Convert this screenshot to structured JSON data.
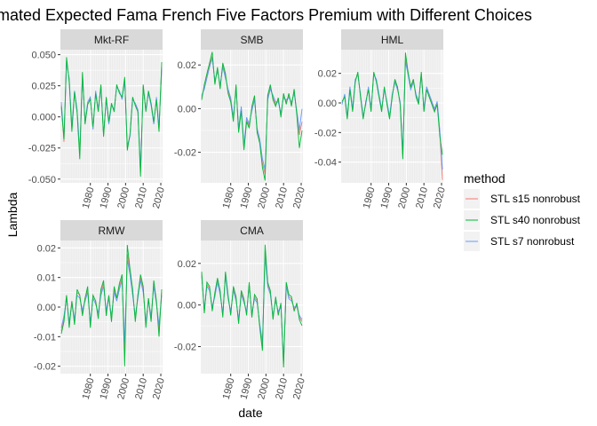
{
  "title": "mated Expected Fama French Five Factors Premium with Different Choices",
  "xlabel": "date",
  "ylabel": "Lambda",
  "legend": {
    "title": "method",
    "position": "right",
    "entries": [
      {
        "name": "STL s15 nonrobust",
        "color": "#F8766D"
      },
      {
        "name": "STL s40 nonrobust",
        "color": "#00BA38"
      },
      {
        "name": "STL s7 nonrobust",
        "color": "#619CFF"
      }
    ]
  },
  "colors": {
    "panel_bg": "#EBEBEB",
    "strip_bg": "#D9D9D9",
    "grid": "#FFFFFF",
    "text": "#4D4D4D"
  },
  "chart_data": [
    {
      "type": "line",
      "panel": "Mkt-RF",
      "xlim": [
        1963,
        2021
      ],
      "ylim": [
        -0.053,
        0.054
      ],
      "xticks": [
        1980,
        1990,
        2000,
        2010,
        2020
      ],
      "yticks": [
        0.05,
        0.025,
        0.0,
        -0.025,
        -0.05
      ],
      "ytick_labels": [
        "0.050",
        "0.025",
        "0.000",
        "-0.025",
        "-0.050"
      ],
      "x": [
        1963.5,
        1965,
        1966.5,
        1968,
        1969.5,
        1971,
        1972.5,
        1974,
        1975.5,
        1977,
        1978.5,
        1980,
        1981.5,
        1983,
        1984.5,
        1986,
        1987.5,
        1989,
        1990.5,
        1992,
        1993.5,
        1995,
        1996.5,
        1998,
        1999.5,
        2001,
        2002.5,
        2004,
        2005.5,
        2007,
        2008.5,
        2010,
        2011.5,
        2013,
        2014.5,
        2016,
        2017.5,
        2019,
        2020.5
      ],
      "series": [
        {
          "name": "STL s15 nonrobust",
          "values": [
            0.01,
            -0.02,
            0.045,
            0.03,
            -0.01,
            0.02,
            0.005,
            -0.03,
            0.035,
            -0.005,
            0.01,
            0.015,
            -0.01,
            0.02,
            0.005,
            0.025,
            -0.015,
            0.015,
            -0.005,
            0.01,
            0.005,
            0.025,
            0.02,
            0.015,
            0.03,
            -0.025,
            -0.015,
            0.015,
            0.01,
            0.005,
            -0.045,
            0.025,
            0.005,
            0.02,
            0.01,
            -0.005,
            0.015,
            -0.01,
            0.04
          ]
        },
        {
          "name": "STL s40 nonrobust",
          "values": [
            0.008,
            -0.018,
            0.048,
            0.028,
            -0.012,
            0.02,
            0.003,
            -0.034,
            0.036,
            -0.006,
            0.01,
            0.014,
            -0.008,
            0.019,
            0.004,
            0.026,
            -0.016,
            0.016,
            -0.004,
            0.011,
            0.004,
            0.026,
            0.019,
            0.016,
            0.032,
            -0.027,
            -0.014,
            0.016,
            0.009,
            0.004,
            -0.048,
            0.026,
            0.004,
            0.021,
            0.011,
            -0.004,
            0.014,
            -0.012,
            0.044
          ]
        },
        {
          "name": "STL s7 nonrobust",
          "values": [
            0.012,
            -0.016,
            0.043,
            0.031,
            -0.008,
            0.021,
            0.006,
            -0.028,
            0.033,
            -0.004,
            0.012,
            0.016,
            -0.01,
            0.021,
            0.006,
            0.024,
            -0.014,
            0.014,
            -0.006,
            0.009,
            0.006,
            0.024,
            0.021,
            0.014,
            0.029,
            -0.023,
            -0.016,
            0.014,
            0.011,
            0.006,
            -0.042,
            0.024,
            0.006,
            0.019,
            0.009,
            -0.006,
            0.016,
            -0.008,
            0.038
          ]
        }
      ]
    },
    {
      "type": "line",
      "panel": "SMB",
      "xlim": [
        1963,
        2021
      ],
      "ylim": [
        -0.034,
        0.027
      ],
      "xticks": [
        1980,
        1990,
        2000,
        2010,
        2020
      ],
      "yticks": [
        0.02,
        0.0,
        -0.02
      ],
      "ytick_labels": [
        "0.02",
        "0.00",
        "-0.02"
      ],
      "x": [
        1963.5,
        1965,
        1966.5,
        1968,
        1969.5,
        1971,
        1972.5,
        1974,
        1975.5,
        1977,
        1978.5,
        1980,
        1981.5,
        1983,
        1984.5,
        1986,
        1987.5,
        1989,
        1990.5,
        1992,
        1993.5,
        1995,
        1996.5,
        1998,
        1999.5,
        2001,
        2002.5,
        2004,
        2005.5,
        2007,
        2008.5,
        2010,
        2011.5,
        2013,
        2014.5,
        2016,
        2017.5,
        2019,
        2020.5
      ],
      "series": [
        {
          "name": "STL s15 nonrobust",
          "values": [
            0.005,
            0.01,
            0.015,
            0.02,
            0.024,
            0.012,
            0.018,
            0.01,
            0.02,
            0.015,
            0.008,
            0.004,
            -0.005,
            0.01,
            -0.01,
            0.0,
            -0.018,
            -0.005,
            -0.008,
            0.0,
            0.005,
            -0.01,
            -0.015,
            -0.025,
            -0.03,
            0.005,
            0.01,
            0.005,
            0.002,
            0.004,
            -0.003,
            0.006,
            0.003,
            0.006,
            0.002,
            0.008,
            -0.002,
            -0.012,
            -0.006
          ]
        },
        {
          "name": "STL s40 nonrobust",
          "values": [
            0.004,
            0.011,
            0.016,
            0.021,
            0.026,
            0.011,
            0.019,
            0.009,
            0.021,
            0.016,
            0.007,
            0.003,
            -0.006,
            0.011,
            -0.011,
            -0.001,
            -0.019,
            -0.006,
            -0.009,
            0.001,
            0.006,
            -0.011,
            -0.016,
            -0.027,
            -0.033,
            0.006,
            0.011,
            0.004,
            0.001,
            0.005,
            -0.004,
            0.007,
            0.002,
            0.007,
            0.001,
            0.009,
            -0.003,
            -0.018,
            -0.01
          ]
        },
        {
          "name": "STL s7 nonrobust",
          "values": [
            0.006,
            0.009,
            0.014,
            0.019,
            0.023,
            0.013,
            0.017,
            0.011,
            0.019,
            0.014,
            0.009,
            0.005,
            -0.004,
            0.009,
            -0.009,
            0.001,
            -0.017,
            -0.004,
            -0.007,
            -0.001,
            0.004,
            -0.009,
            -0.014,
            -0.023,
            -0.028,
            0.004,
            0.009,
            0.006,
            0.003,
            0.003,
            -0.002,
            0.005,
            0.004,
            0.005,
            0.003,
            0.007,
            -0.001,
            -0.01,
            0.0
          ]
        }
      ]
    },
    {
      "type": "line",
      "panel": "HML",
      "xlim": [
        1963,
        2021
      ],
      "ylim": [
        -0.054,
        0.036
      ],
      "xticks": [
        1980,
        1990,
        2000,
        2010,
        2020
      ],
      "yticks": [
        0.02,
        0.0,
        -0.02,
        -0.04
      ],
      "ytick_labels": [
        "0.02",
        "0.00",
        "-0.02",
        "-0.04"
      ],
      "x": [
        1963.5,
        1965,
        1966.5,
        1968,
        1969.5,
        1971,
        1972.5,
        1974,
        1975.5,
        1977,
        1978.5,
        1980,
        1981.5,
        1983,
        1984.5,
        1986,
        1987.5,
        1989,
        1990.5,
        1992,
        1993.5,
        1995,
        1996.5,
        1998,
        1999.5,
        2001,
        2002.5,
        2004,
        2005.5,
        2007,
        2008.5,
        2010,
        2011.5,
        2013,
        2014.5,
        2016,
        2017.5,
        2019,
        2020.5
      ],
      "series": [
        {
          "name": "STL s15 nonrobust",
          "values": [
            0.0,
            0.005,
            -0.01,
            0.01,
            -0.005,
            0.015,
            0.02,
            0.005,
            -0.01,
            0.0,
            0.01,
            -0.005,
            0.02,
            0.015,
            0.005,
            -0.005,
            0.01,
            0.0,
            -0.01,
            0.005,
            0.015,
            0.01,
            0.0,
            -0.035,
            0.03,
            0.02,
            0.01,
            0.015,
            0.005,
            0.0,
            0.02,
            -0.005,
            0.01,
            0.005,
            0.0,
            -0.005,
            0.0,
            -0.02,
            -0.052
          ]
        },
        {
          "name": "STL s40 nonrobust",
          "values": [
            0.001,
            0.004,
            -0.011,
            0.009,
            -0.006,
            0.014,
            0.021,
            0.004,
            -0.011,
            0.001,
            0.009,
            -0.006,
            0.021,
            0.014,
            0.004,
            -0.006,
            0.011,
            -0.001,
            -0.011,
            0.004,
            0.016,
            0.011,
            -0.001,
            -0.038,
            0.034,
            0.021,
            0.011,
            0.016,
            0.004,
            -0.001,
            0.021,
            -0.006,
            0.009,
            0.004,
            -0.001,
            -0.006,
            -0.001,
            -0.022,
            -0.035
          ]
        },
        {
          "name": "STL s7 nonrobust",
          "values": [
            -0.001,
            0.006,
            -0.009,
            0.011,
            -0.004,
            0.016,
            0.019,
            0.006,
            -0.009,
            -0.001,
            0.011,
            -0.004,
            0.019,
            0.016,
            0.006,
            -0.004,
            0.009,
            0.001,
            -0.009,
            0.006,
            0.014,
            0.009,
            0.001,
            -0.033,
            0.028,
            0.019,
            0.009,
            0.014,
            0.006,
            0.001,
            0.019,
            -0.004,
            0.011,
            0.006,
            0.001,
            -0.004,
            0.001,
            -0.018,
            -0.045
          ]
        }
      ]
    },
    {
      "type": "line",
      "panel": "RMW",
      "xlim": [
        1963,
        2021
      ],
      "ylim": [
        -0.0225,
        0.0225
      ],
      "xticks": [
        1980,
        1990,
        2000,
        2010,
        2020
      ],
      "yticks": [
        0.02,
        0.01,
        0.0,
        -0.01,
        -0.02
      ],
      "ytick_labels": [
        "0.02",
        "0.01",
        "0.00",
        "-0.01",
        "-0.02"
      ],
      "x": [
        1963.5,
        1965,
        1966.5,
        1968,
        1969.5,
        1971,
        1972.5,
        1974,
        1975.5,
        1977,
        1978.5,
        1980,
        1981.5,
        1983,
        1984.5,
        1986,
        1987.5,
        1989,
        1990.5,
        1992,
        1993.5,
        1995,
        1996.5,
        1998,
        1999.5,
        2001,
        2002.5,
        2004,
        2005.5,
        2007,
        2008.5,
        2010,
        2011.5,
        2013,
        2014.5,
        2016,
        2017.5,
        2019,
        2020.5
      ],
      "series": [
        {
          "name": "STL s15 nonrobust",
          "values": [
            -0.008,
            -0.004,
            0.004,
            -0.006,
            0.002,
            -0.005,
            0.005,
            0.004,
            -0.002,
            0.003,
            0.006,
            -0.006,
            0.004,
            0.002,
            -0.003,
            0.005,
            0.008,
            -0.002,
            0.004,
            -0.004,
            0.006,
            0.003,
            0.007,
            0.01,
            -0.015,
            0.018,
            0.012,
            0.005,
            -0.004,
            0.004,
            0.01,
            0.006,
            -0.006,
            0.003,
            -0.004,
            0.008,
            0.002,
            -0.008,
            0.005
          ]
        },
        {
          "name": "STL s40 nonrobust",
          "values": [
            -0.009,
            -0.005,
            0.004,
            -0.007,
            0.002,
            -0.006,
            0.006,
            0.004,
            -0.003,
            0.003,
            0.007,
            -0.007,
            0.004,
            0.002,
            -0.004,
            0.006,
            0.009,
            -0.003,
            0.004,
            -0.005,
            0.007,
            0.003,
            0.008,
            0.011,
            -0.02,
            0.021,
            0.013,
            0.006,
            -0.005,
            0.004,
            0.011,
            0.007,
            -0.007,
            0.003,
            -0.005,
            0.009,
            0.002,
            -0.01,
            0.006
          ]
        },
        {
          "name": "STL s7 nonrobust",
          "values": [
            -0.007,
            -0.003,
            0.003,
            -0.005,
            0.001,
            -0.004,
            0.004,
            0.003,
            -0.001,
            0.002,
            0.005,
            -0.005,
            0.003,
            0.001,
            -0.002,
            0.004,
            0.007,
            -0.001,
            0.003,
            -0.003,
            0.005,
            0.002,
            0.006,
            0.009,
            -0.012,
            0.016,
            0.011,
            0.004,
            -0.003,
            0.003,
            0.009,
            0.005,
            -0.005,
            0.002,
            -0.003,
            0.007,
            0.001,
            -0.006,
            0.004
          ]
        }
      ]
    },
    {
      "type": "line",
      "panel": "CMA",
      "xlim": [
        1963,
        2021
      ],
      "ylim": [
        -0.033,
        0.031
      ],
      "xticks": [
        1980,
        1990,
        2000,
        2010,
        2020
      ],
      "yticks": [
        0.02,
        0.0,
        -0.02
      ],
      "ytick_labels": [
        "0.02",
        "0.00",
        "-0.02"
      ],
      "x": [
        1963.5,
        1965,
        1966.5,
        1968,
        1969.5,
        1971,
        1972.5,
        1974,
        1975.5,
        1977,
        1978.5,
        1980,
        1981.5,
        1983,
        1984.5,
        1986,
        1987.5,
        1989,
        1990.5,
        1992,
        1993.5,
        1995,
        1996.5,
        1998,
        1999.5,
        2001,
        2002.5,
        2004,
        2005.5,
        2007,
        2008.5,
        2010,
        2011.5,
        2013,
        2014.5,
        2016,
        2017.5,
        2019,
        2020.5
      ],
      "series": [
        {
          "name": "STL s15 nonrobust",
          "values": [
            0.015,
            -0.003,
            0.01,
            0.008,
            -0.002,
            0.005,
            0.012,
            0.006,
            -0.005,
            0.015,
            0.004,
            -0.004,
            0.008,
            0.003,
            -0.008,
            0.006,
            0.002,
            -0.004,
            0.01,
            -0.005,
            0.004,
            0.002,
            -0.01,
            -0.02,
            0.026,
            0.01,
            0.006,
            -0.006,
            0.003,
            -0.004,
            0.0,
            -0.028,
            0.01,
            0.004,
            0.003,
            -0.002,
            0.0,
            -0.006,
            -0.008
          ]
        },
        {
          "name": "STL s40 nonrobust",
          "values": [
            0.016,
            -0.004,
            0.011,
            0.009,
            -0.003,
            0.006,
            0.013,
            0.007,
            -0.006,
            0.016,
            0.005,
            -0.005,
            0.009,
            0.004,
            -0.009,
            0.007,
            0.003,
            -0.005,
            0.011,
            -0.006,
            0.005,
            0.003,
            -0.011,
            -0.022,
            0.029,
            0.011,
            0.007,
            -0.007,
            0.004,
            -0.005,
            0.001,
            -0.03,
            0.011,
            0.005,
            0.004,
            -0.003,
            0.001,
            -0.007,
            -0.01
          ]
        },
        {
          "name": "STL s7 nonrobust",
          "values": [
            0.014,
            -0.002,
            0.009,
            0.007,
            -0.001,
            0.004,
            0.011,
            0.005,
            -0.004,
            0.014,
            0.003,
            -0.003,
            0.007,
            0.002,
            -0.007,
            0.005,
            0.001,
            -0.003,
            0.009,
            -0.004,
            0.003,
            0.001,
            -0.009,
            -0.018,
            0.023,
            0.009,
            0.005,
            -0.005,
            0.002,
            -0.003,
            -0.001,
            -0.026,
            0.009,
            0.003,
            0.002,
            -0.001,
            -0.001,
            -0.005,
            -0.007
          ]
        }
      ]
    }
  ]
}
